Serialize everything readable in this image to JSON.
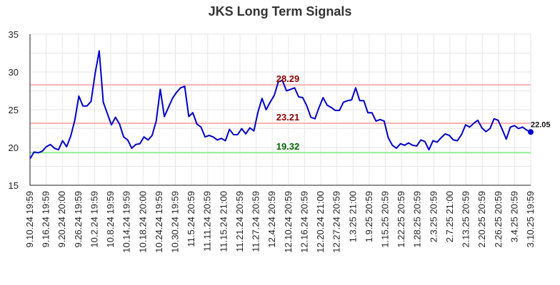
{
  "chart_data": {
    "type": "line",
    "title": "JKS Long Term Signals",
    "xlabel": "",
    "ylabel": "",
    "ylim": [
      15,
      35
    ],
    "yticks": [
      15,
      20,
      25,
      30,
      35
    ],
    "grid": true,
    "x_tick_labels": [
      "9.10.24 19:59",
      "9.16.24 19:59",
      "9.20.24 20:00",
      "9.26.24 19:59",
      "10.2.24 19:59",
      "10.8.24 19:59",
      "10.14.24 19:59",
      "10.18.24 20:00",
      "10.24.24 19:59",
      "10.30.24 19:59",
      "11.5.24 20:59",
      "11.11.24 20:59",
      "11.15.24 21:00",
      "11.21.24 20:59",
      "11.27.24 20:59",
      "12.4.24 20:59",
      "12.10.24 20:59",
      "12.16.24 20:59",
      "12.20.24 21:00",
      "12.27.24 20:59",
      "1.3.25 21:00",
      "1.9.25 20:59",
      "1.15.25 20:59",
      "1.22.25 20:59",
      "1.28.25 20:59",
      "2.3.25 20:59",
      "2.7.25 21:00",
      "2.13.25 20:59",
      "2.20.25 20:59",
      "2.26.25 20:59",
      "3.4.25 20:59",
      "3.10.25 19:59"
    ],
    "series": [
      {
        "color": "#0000cc",
        "values": [
          18.5,
          19.4,
          19.3,
          19.5,
          20.1,
          20.4,
          19.9,
          19.7,
          20.9,
          20.1,
          21.5,
          23.6,
          26.8,
          25.5,
          25.5,
          26.1,
          29.8,
          32.8,
          26.0,
          24.5,
          23.0,
          24.0,
          23.1,
          21.4,
          21.0,
          19.9,
          20.4,
          20.5,
          21.4,
          21.0,
          21.6,
          23.5,
          27.7,
          24.1,
          25.3,
          26.5,
          27.3,
          27.9,
          28.1,
          24.1,
          24.6,
          23.1,
          22.7,
          21.4,
          21.6,
          21.4,
          21.0,
          21.2,
          20.9,
          22.4,
          21.7,
          21.7,
          22.5,
          21.8,
          22.6,
          22.2,
          24.7,
          26.5,
          25.0,
          26.0,
          26.9,
          28.7,
          28.9,
          27.5,
          27.7,
          27.9,
          26.7,
          26.6,
          25.5,
          24.0,
          23.8,
          25.3,
          26.6,
          25.6,
          25.3,
          24.9,
          24.9,
          26.0,
          26.2,
          26.3,
          27.9,
          26.2,
          26.2,
          24.6,
          24.6,
          23.5,
          23.7,
          23.5,
          21.3,
          20.3,
          19.9,
          20.5,
          20.3,
          20.6,
          20.3,
          20.2,
          21.0,
          20.8,
          19.7,
          20.9,
          20.7,
          21.3,
          21.8,
          21.6,
          21.0,
          20.9,
          21.7,
          23.0,
          22.7,
          23.2,
          23.6,
          22.6,
          22.1,
          22.5,
          23.8,
          23.6,
          22.4,
          21.1,
          22.7,
          22.9,
          22.5,
          22.7,
          22.3,
          22.05
        ]
      }
    ],
    "reference_lines": [
      {
        "value": 28.29,
        "label": "28.29",
        "color": "#ffb3b3",
        "label_color": "#8b0000"
      },
      {
        "value": 23.21,
        "label": "23.21",
        "color": "#ffb3b3",
        "label_color": "#8b0000"
      },
      {
        "value": 19.32,
        "label": "19.32",
        "color": "#90ee90",
        "label_color": "#006400"
      }
    ],
    "last_value_label": "22.05"
  }
}
